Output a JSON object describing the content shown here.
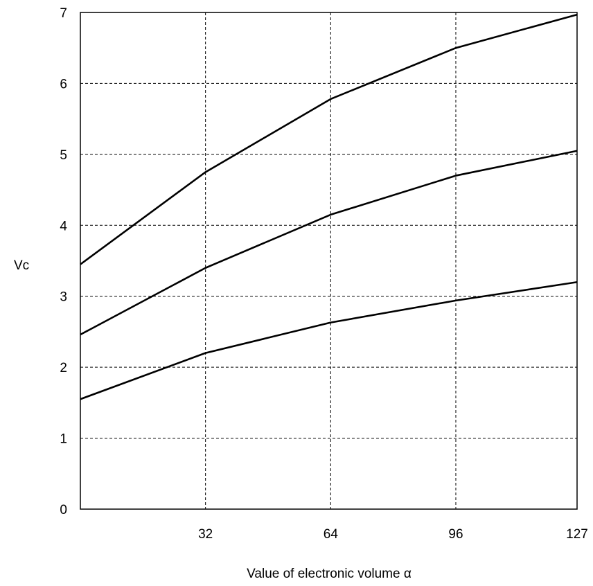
{
  "chart_data": {
    "type": "line",
    "xlabel": "Value of electronic volume α",
    "ylabel": "Vc",
    "xlim": [
      0,
      127
    ],
    "ylim": [
      0,
      7
    ],
    "xticks": [
      32,
      64,
      96,
      127
    ],
    "xtick_labels": [
      "32",
      "64",
      "96",
      "127"
    ],
    "yticks": [
      0,
      1,
      2,
      3,
      4,
      5,
      6,
      7
    ],
    "ytick_labels": [
      "0",
      "1",
      "2",
      "3",
      "4",
      "5",
      "6",
      "7"
    ],
    "grid": true,
    "x": [
      0,
      32,
      64,
      96,
      127
    ],
    "series": [
      {
        "values": [
          3.45,
          4.75,
          5.78,
          6.5,
          6.97
        ]
      },
      {
        "values": [
          2.46,
          3.4,
          4.15,
          4.7,
          5.05
        ]
      },
      {
        "values": [
          1.55,
          2.2,
          2.63,
          2.94,
          3.2
        ]
      }
    ]
  }
}
